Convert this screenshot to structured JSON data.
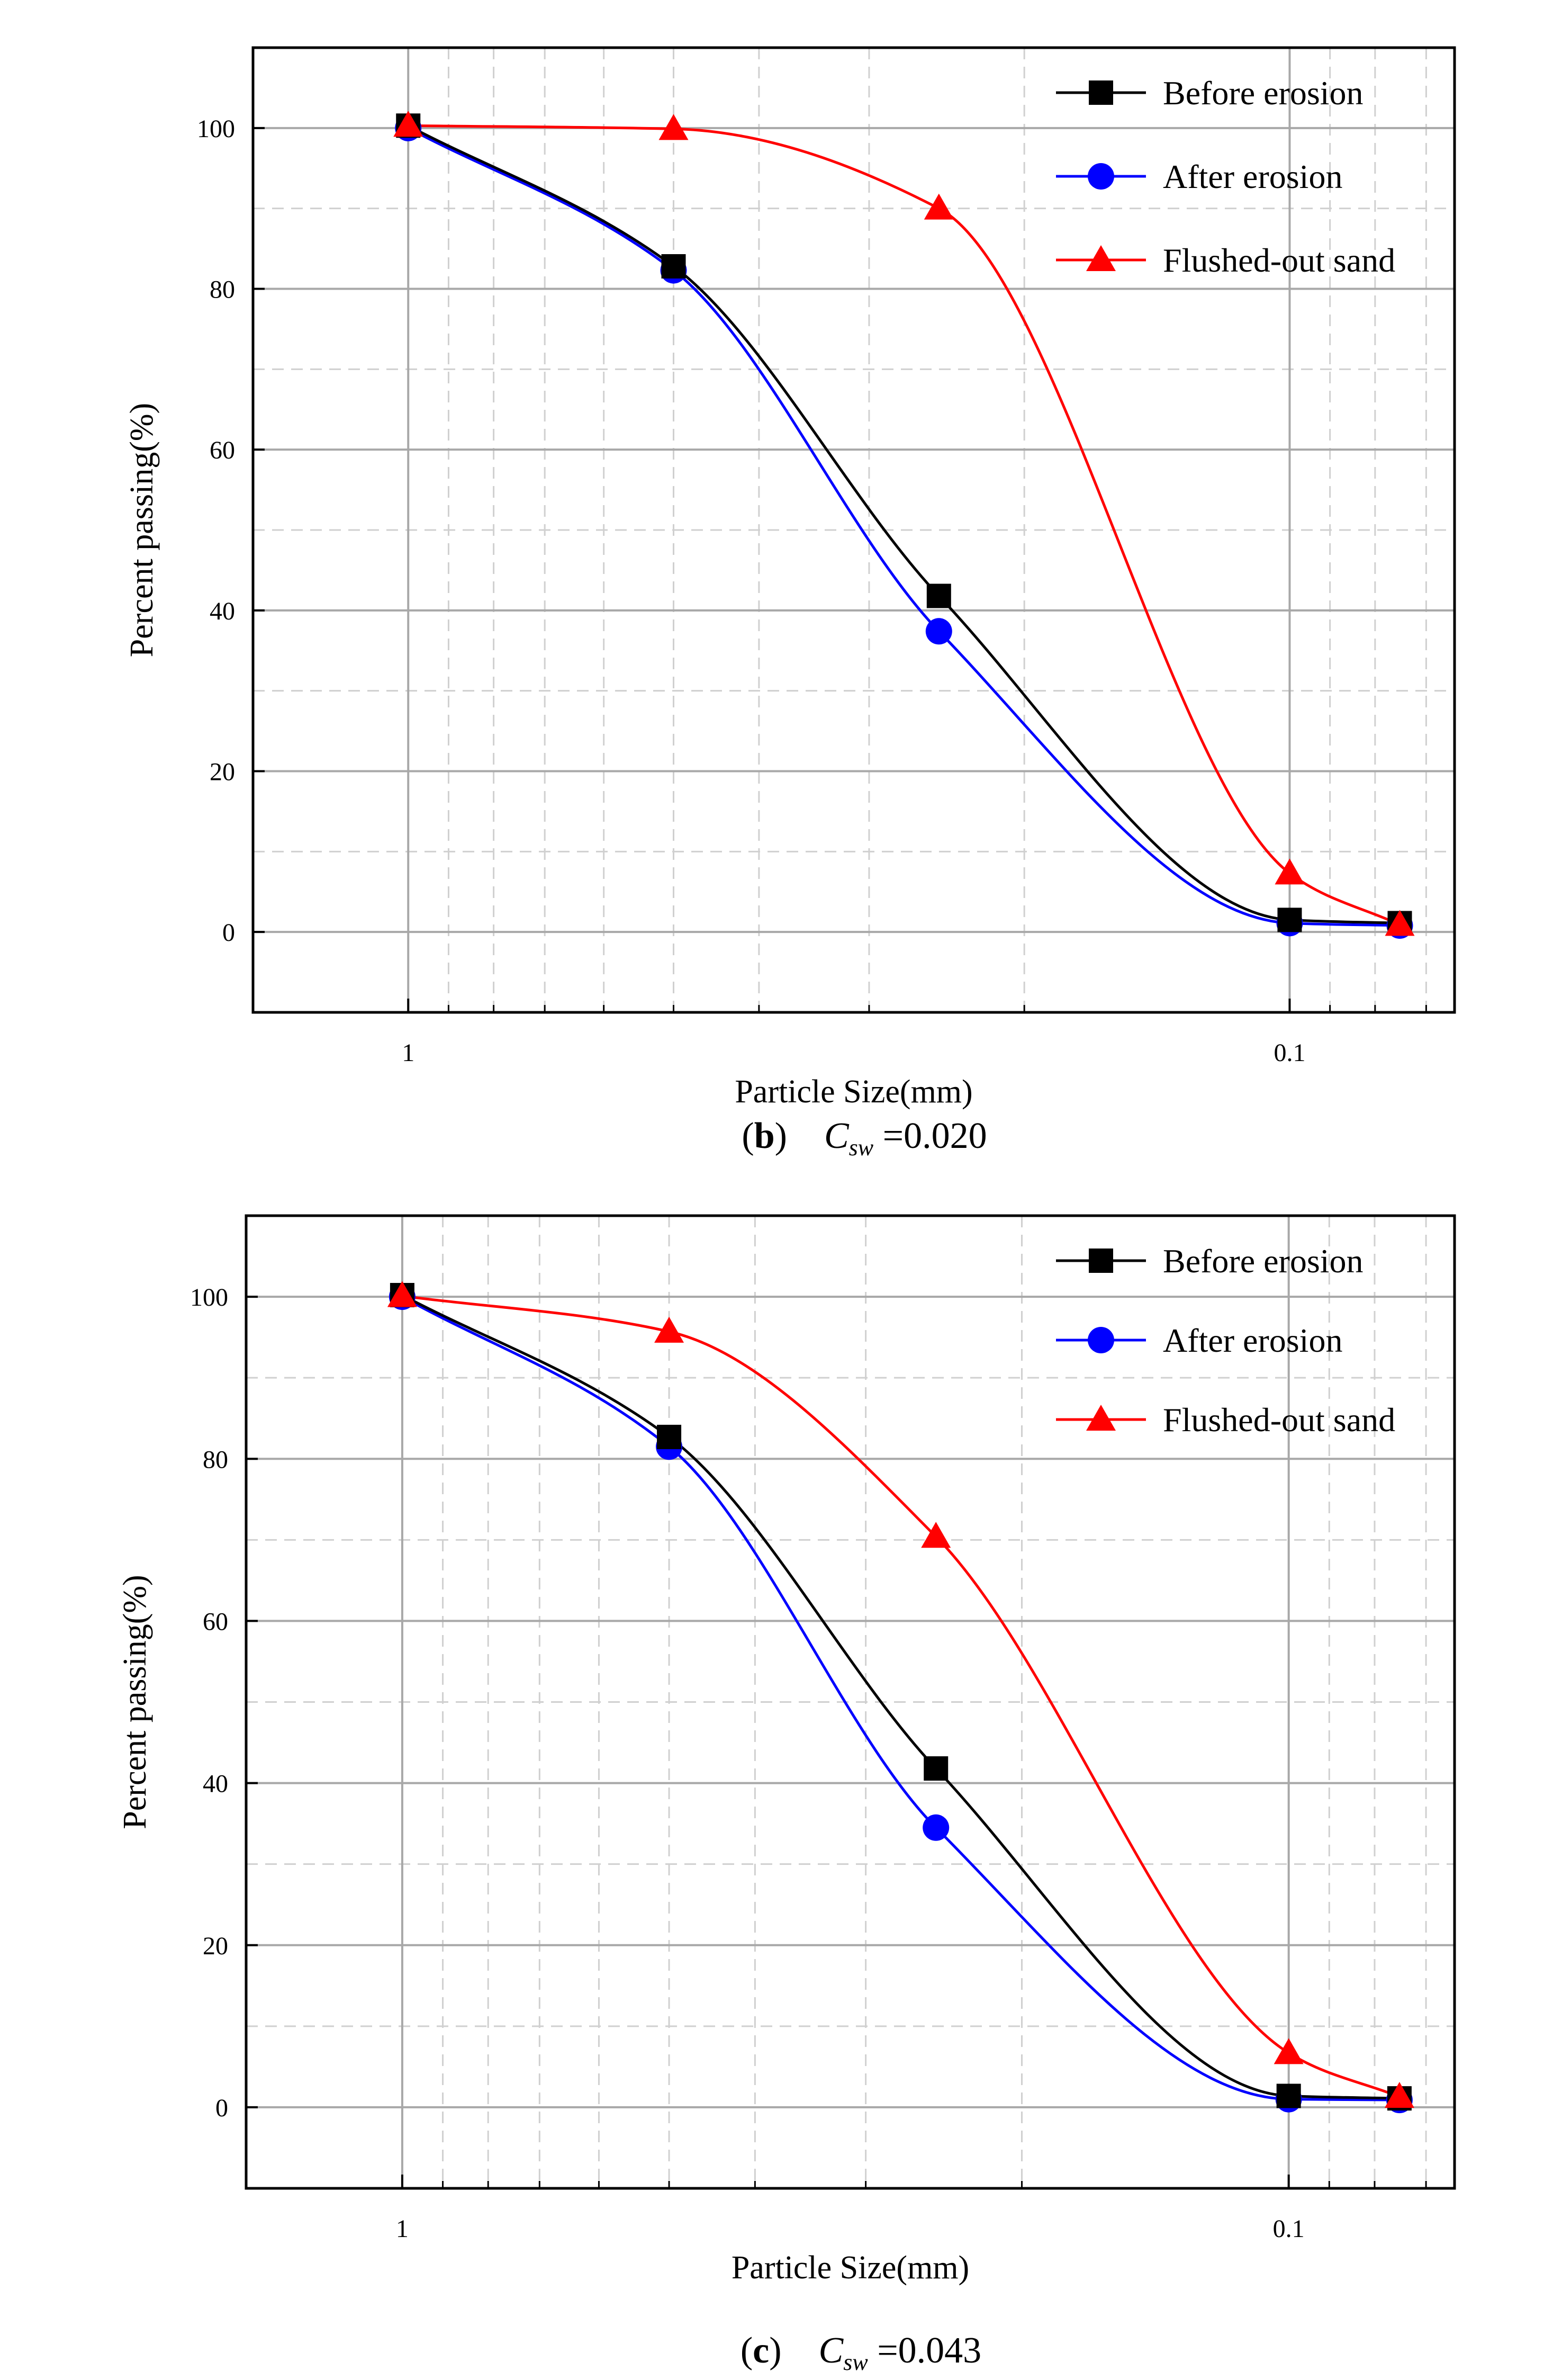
{
  "chart_data": [
    {
      "type": "line",
      "x_scale": "log",
      "x_reversed": true,
      "xlabel": "Particle Size(mm)",
      "ylabel": "Percent passing(%)",
      "xlim": [
        1.5,
        0.065
      ],
      "ylim": [
        -10,
        110
      ],
      "x_ticks": [
        {
          "value": 1,
          "label": "1"
        },
        {
          "value": 0.1,
          "label": "0.1"
        }
      ],
      "y_ticks": [
        {
          "value": 0,
          "label": "0"
        },
        {
          "value": 20,
          "label": "20"
        },
        {
          "value": 40,
          "label": "40"
        },
        {
          "value": 60,
          "label": "60"
        },
        {
          "value": 80,
          "label": "80"
        },
        {
          "value": 100,
          "label": "100"
        }
      ],
      "grid": true,
      "legend_position": "top-right",
      "x": [
        1.0,
        0.5,
        0.25,
        0.1,
        0.075
      ],
      "series": [
        {
          "name": "Before erosion",
          "marker": "square",
          "color": "#000000",
          "values": [
            100.3,
            82.8,
            41.8,
            1.5,
            1.1
          ]
        },
        {
          "name": "After erosion",
          "marker": "circle",
          "color": "#0000ff",
          "values": [
            100.0,
            82.3,
            37.4,
            1.1,
            0.8
          ]
        },
        {
          "name": "Flushed-out sand",
          "marker": "triangle",
          "color": "#ff0000",
          "values": [
            100.3,
            99.9,
            90.0,
            7.3,
            0.9
          ]
        }
      ],
      "caption": {
        "letter": "b",
        "symbol": "C",
        "subscript": "sw",
        "value": "=0.020"
      }
    },
    {
      "type": "line",
      "x_scale": "log",
      "x_reversed": true,
      "xlabel": "Particle Size(mm)",
      "ylabel": "Percent passing(%)",
      "xlim": [
        1.5,
        0.065
      ],
      "ylim": [
        -10,
        110
      ],
      "x_ticks": [
        {
          "value": 1,
          "label": "1"
        },
        {
          "value": 0.1,
          "label": "0.1"
        }
      ],
      "y_ticks": [
        {
          "value": 0,
          "label": "0"
        },
        {
          "value": 20,
          "label": "20"
        },
        {
          "value": 40,
          "label": "40"
        },
        {
          "value": 60,
          "label": "60"
        },
        {
          "value": 80,
          "label": "80"
        },
        {
          "value": 100,
          "label": "100"
        }
      ],
      "grid": true,
      "legend_position": "top-right",
      "x": [
        1.0,
        0.5,
        0.25,
        0.1,
        0.075
      ],
      "series": [
        {
          "name": "Before erosion",
          "marker": "square",
          "color": "#000000",
          "values": [
            100.2,
            82.7,
            41.8,
            1.4,
            1.1
          ]
        },
        {
          "name": "After erosion",
          "marker": "circle",
          "color": "#0000ff",
          "values": [
            100.0,
            81.5,
            34.5,
            1.0,
            0.9
          ]
        },
        {
          "name": "Flushed-out sand",
          "marker": "triangle",
          "color": "#ff0000",
          "values": [
            100.1,
            95.7,
            70.4,
            6.7,
            1.3
          ]
        }
      ],
      "caption": {
        "letter": "c",
        "symbol": "C",
        "subscript": "sw",
        "value": "=0.043"
      }
    }
  ]
}
